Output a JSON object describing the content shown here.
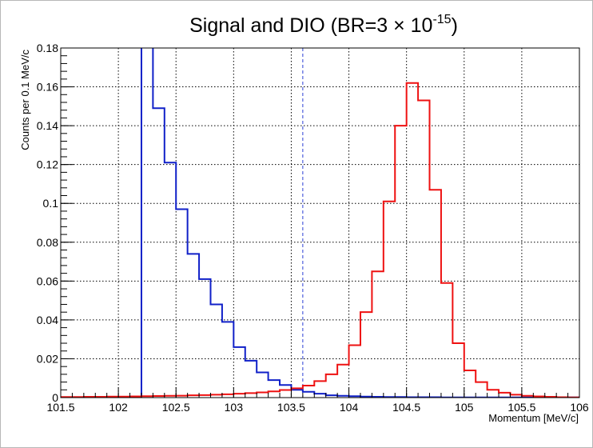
{
  "chart_data": {
    "type": "line",
    "title": {
      "main": "Signal and DIO (BR=3 × 10",
      "exponent": "-15",
      "close": ")"
    },
    "xlabel": "Momentum [MeV/c]",
    "ylabel": "Counts per 0.1 MeV/c",
    "xlim": [
      101.5,
      106
    ],
    "ylim": [
      0,
      0.18
    ],
    "xticks": [
      "101.5",
      "102",
      "102.5",
      "103",
      "103.5",
      "104",
      "104.5",
      "105",
      "105.5",
      "106"
    ],
    "xtick_values": [
      101.5,
      102,
      102.5,
      103,
      103.5,
      104,
      104.5,
      105,
      105.5,
      106
    ],
    "yticks": [
      "0",
      "0.02",
      "0.04",
      "0.06",
      "0.08",
      "0.1",
      "0.12",
      "0.14",
      "0.16",
      "0.18"
    ],
    "ytick_values": [
      0,
      0.02,
      0.04,
      0.06,
      0.08,
      0.1,
      0.12,
      0.14,
      0.16,
      0.18
    ],
    "grid": true,
    "bin_width": 0.1,
    "vertical_marker": {
      "x": 103.6,
      "style": "dashed",
      "color": "#2b3fd6"
    },
    "series": [
      {
        "color": "#1020c8",
        "bin_edges": [
          102.2,
          102.3,
          102.4,
          102.5,
          102.6,
          102.7,
          102.8,
          102.9,
          103.0,
          103.1,
          103.2,
          103.3,
          103.4,
          103.5,
          103.6,
          103.7,
          103.8,
          103.9,
          104.0,
          104.1,
          104.2,
          104.3,
          104.4,
          104.5,
          104.6,
          104.7,
          104.8,
          104.9,
          105.0,
          105.1,
          105.2,
          105.3,
          105.4,
          105.5,
          105.6,
          105.7,
          105.8,
          105.9,
          106.0
        ],
        "values": [
          0.25,
          0.149,
          0.121,
          0.097,
          0.074,
          0.061,
          0.048,
          0.039,
          0.026,
          0.019,
          0.013,
          0.009,
          0.0065,
          0.004,
          0.003,
          0.002,
          0.0012,
          0.0009,
          0.0007,
          0.0005,
          0.0004,
          0.0003,
          0.0003,
          0.0002,
          0.0002,
          0.0002,
          0.0001,
          0.0001,
          0.0001,
          0.0001,
          0.0001,
          0.0001,
          0.0001,
          0.0001,
          0.0001,
          0.0001,
          0.0001,
          0.0001
        ]
      },
      {
        "color": "#ee1111",
        "bin_edges": [
          101.5,
          101.6,
          101.7,
          101.8,
          101.9,
          102.0,
          102.1,
          102.2,
          102.3,
          102.4,
          102.5,
          102.6,
          102.7,
          102.8,
          102.9,
          103.0,
          103.1,
          103.2,
          103.3,
          103.4,
          103.5,
          103.6,
          103.7,
          103.8,
          103.9,
          104.0,
          104.1,
          104.2,
          104.3,
          104.4,
          104.5,
          104.6,
          104.7,
          104.8,
          104.9,
          105.0,
          105.1,
          105.2,
          105.3,
          105.4,
          105.5,
          105.6,
          105.7,
          105.8,
          105.9,
          106.0
        ],
        "values": [
          0.0003,
          0.0003,
          0.0004,
          0.0004,
          0.0005,
          0.0005,
          0.0006,
          0.0007,
          0.0008,
          0.0009,
          0.001,
          0.0012,
          0.0013,
          0.0015,
          0.0017,
          0.002,
          0.0023,
          0.0027,
          0.0032,
          0.0039,
          0.0048,
          0.0062,
          0.0085,
          0.012,
          0.017,
          0.027,
          0.044,
          0.065,
          0.101,
          0.14,
          0.162,
          0.153,
          0.107,
          0.059,
          0.028,
          0.014,
          0.008,
          0.004,
          0.0025,
          0.0015,
          0.0009,
          0.0006,
          0.0004,
          0.0002,
          0.0001
        ]
      }
    ]
  }
}
